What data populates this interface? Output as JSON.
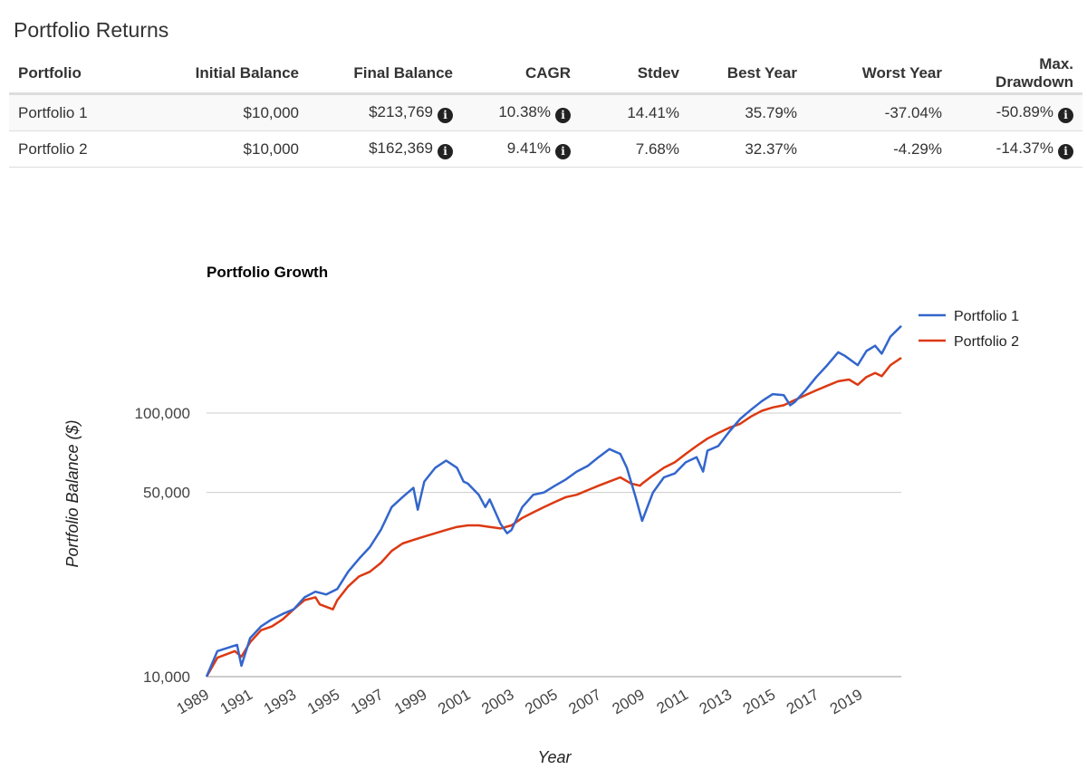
{
  "page_title": "Portfolio Returns",
  "table": {
    "headers": [
      "Portfolio",
      "Initial Balance",
      "Final Balance",
      "CAGR",
      "Stdev",
      "Best Year",
      "Worst Year",
      "Max. Drawdown"
    ],
    "rows": [
      {
        "name": "Portfolio 1",
        "initial": "$10,000",
        "final": "$213,769",
        "cagr": "10.38%",
        "stdev": "14.41%",
        "best": "35.79%",
        "worst": "-37.04%",
        "drawdown": "-50.89%"
      },
      {
        "name": "Portfolio 2",
        "initial": "$10,000",
        "final": "$162,369",
        "cagr": "9.41%",
        "stdev": "7.68%",
        "best": "32.37%",
        "worst": "-4.29%",
        "drawdown": "-14.37%"
      }
    ],
    "info_icon": "info-circle-icon"
  },
  "chart_data": {
    "type": "line",
    "title": "Portfolio Growth",
    "xlabel": "Year",
    "ylabel": "Portfolio Balance ($)",
    "yscale": "log",
    "ylim": [
      10000,
      240000
    ],
    "xlim": [
      1989,
      2020.9
    ],
    "yticks": [
      10000,
      50000,
      100000
    ],
    "ytick_labels": [
      "10,000",
      "50,000",
      "100,000"
    ],
    "xticks": [
      1989,
      1991,
      1993,
      1995,
      1997,
      1999,
      2001,
      2003,
      2005,
      2007,
      2009,
      2011,
      2013,
      2015,
      2017,
      2019
    ],
    "legend_position": "top-right",
    "series": [
      {
        "name": "Portfolio 1",
        "color": "#3366cc",
        "points": [
          [
            1989,
            10000
          ],
          [
            1989.5,
            12500
          ],
          [
            1990.4,
            13200
          ],
          [
            1990.6,
            11000
          ],
          [
            1991,
            14000
          ],
          [
            1991.5,
            15500
          ],
          [
            1992,
            16500
          ],
          [
            1992.5,
            17300
          ],
          [
            1993,
            18000
          ],
          [
            1993.5,
            20000
          ],
          [
            1994,
            21000
          ],
          [
            1994.5,
            20500
          ],
          [
            1995,
            21500
          ],
          [
            1995.5,
            25000
          ],
          [
            1996,
            28000
          ],
          [
            1996.5,
            31000
          ],
          [
            1997,
            36000
          ],
          [
            1997.5,
            44000
          ],
          [
            1998,
            48000
          ],
          [
            1998.5,
            52000
          ],
          [
            1998.7,
            43000
          ],
          [
            1999,
            55000
          ],
          [
            1999.5,
            62000
          ],
          [
            2000,
            66000
          ],
          [
            2000.5,
            62000
          ],
          [
            2000.8,
            55000
          ],
          [
            2001,
            54000
          ],
          [
            2001.5,
            49000
          ],
          [
            2001.8,
            44000
          ],
          [
            2002,
            47000
          ],
          [
            2002.5,
            38000
          ],
          [
            2002.8,
            35000
          ],
          [
            2003,
            36000
          ],
          [
            2003.5,
            44000
          ],
          [
            2004,
            49000
          ],
          [
            2004.5,
            50000
          ],
          [
            2005,
            53000
          ],
          [
            2005.5,
            56000
          ],
          [
            2006,
            60000
          ],
          [
            2006.5,
            63000
          ],
          [
            2007,
            68000
          ],
          [
            2007.5,
            73000
          ],
          [
            2008,
            70000
          ],
          [
            2008.3,
            62000
          ],
          [
            2008.7,
            48000
          ],
          [
            2009,
            39000
          ],
          [
            2009.5,
            50000
          ],
          [
            2010,
            57000
          ],
          [
            2010.5,
            59000
          ],
          [
            2011,
            65000
          ],
          [
            2011.5,
            68000
          ],
          [
            2011.8,
            60000
          ],
          [
            2012,
            72000
          ],
          [
            2012.5,
            75000
          ],
          [
            2013,
            85000
          ],
          [
            2013.5,
            95000
          ],
          [
            2014,
            103000
          ],
          [
            2014.5,
            111000
          ],
          [
            2015,
            118000
          ],
          [
            2015.5,
            117000
          ],
          [
            2015.8,
            107000
          ],
          [
            2016,
            110000
          ],
          [
            2016.5,
            122000
          ],
          [
            2017,
            137000
          ],
          [
            2017.5,
            152000
          ],
          [
            2018,
            170000
          ],
          [
            2018.3,
            165000
          ],
          [
            2018.9,
            152000
          ],
          [
            2019.3,
            172000
          ],
          [
            2019.7,
            180000
          ],
          [
            2020,
            168000
          ],
          [
            2020.4,
            195000
          ],
          [
            2020.9,
            214000
          ]
        ]
      },
      {
        "name": "Portfolio 2",
        "color": "#dc3912",
        "points": [
          [
            1989,
            10000
          ],
          [
            1989.5,
            11800
          ],
          [
            1990.3,
            12500
          ],
          [
            1990.6,
            11900
          ],
          [
            1991,
            13500
          ],
          [
            1991.5,
            15000
          ],
          [
            1992,
            15500
          ],
          [
            1992.5,
            16500
          ],
          [
            1993,
            18000
          ],
          [
            1993.5,
            19500
          ],
          [
            1994,
            20000
          ],
          [
            1994.2,
            18800
          ],
          [
            1994.8,
            18000
          ],
          [
            1995,
            19500
          ],
          [
            1995.5,
            22000
          ],
          [
            1996,
            24000
          ],
          [
            1996.5,
            25000
          ],
          [
            1997,
            27000
          ],
          [
            1997.5,
            30000
          ],
          [
            1998,
            32000
          ],
          [
            1998.5,
            33000
          ],
          [
            1999,
            34000
          ],
          [
            1999.5,
            35000
          ],
          [
            2000,
            36000
          ],
          [
            2000.5,
            37000
          ],
          [
            2001,
            37500
          ],
          [
            2001.5,
            37500
          ],
          [
            2002,
            37000
          ],
          [
            2002.5,
            36500
          ],
          [
            2003,
            37500
          ],
          [
            2003.5,
            40000
          ],
          [
            2004,
            42000
          ],
          [
            2004.5,
            44000
          ],
          [
            2005,
            46000
          ],
          [
            2005.5,
            48000
          ],
          [
            2006,
            49000
          ],
          [
            2006.5,
            51000
          ],
          [
            2007,
            53000
          ],
          [
            2007.5,
            55000
          ],
          [
            2008,
            57000
          ],
          [
            2008.5,
            54000
          ],
          [
            2008.9,
            53000
          ],
          [
            2009,
            54000
          ],
          [
            2009.5,
            58000
          ],
          [
            2010,
            62000
          ],
          [
            2010.5,
            65000
          ],
          [
            2011,
            70000
          ],
          [
            2011.5,
            75000
          ],
          [
            2012,
            80000
          ],
          [
            2012.5,
            84000
          ],
          [
            2013,
            88000
          ],
          [
            2013.5,
            91000
          ],
          [
            2014,
            97000
          ],
          [
            2014.5,
            102000
          ],
          [
            2015,
            105000
          ],
          [
            2015.5,
            107000
          ],
          [
            2016,
            112000
          ],
          [
            2016.5,
            117000
          ],
          [
            2017,
            122000
          ],
          [
            2017.5,
            127000
          ],
          [
            2018,
            132000
          ],
          [
            2018.5,
            134000
          ],
          [
            2018.9,
            128000
          ],
          [
            2019.3,
            137000
          ],
          [
            2019.7,
            142000
          ],
          [
            2020,
            138000
          ],
          [
            2020.4,
            152000
          ],
          [
            2020.9,
            162000
          ]
        ]
      }
    ]
  }
}
